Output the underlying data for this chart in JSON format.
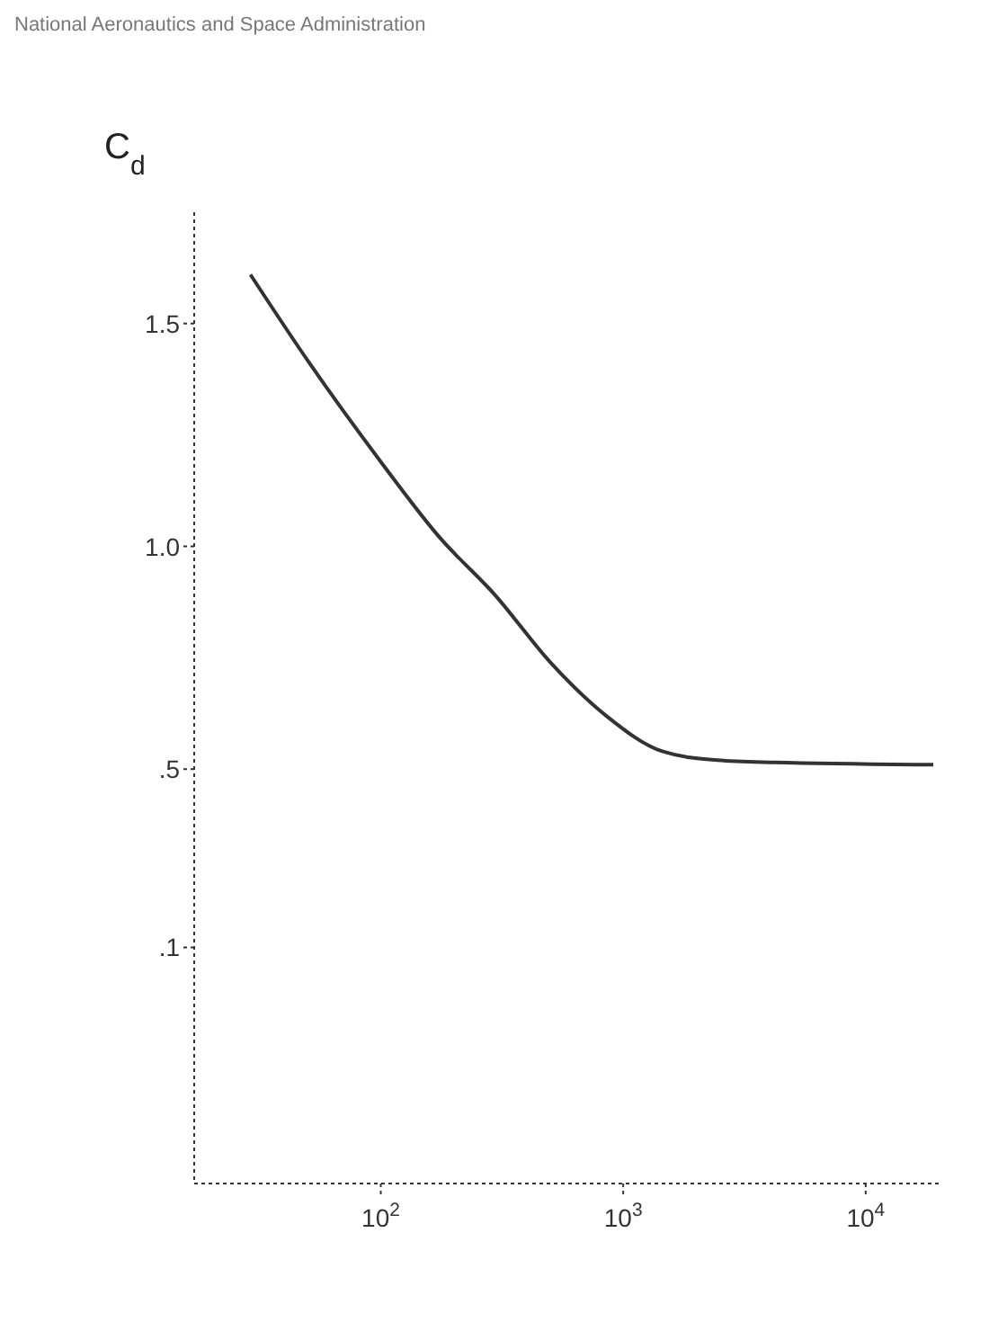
{
  "chart_data": {
    "type": "line",
    "ylabel": "C$_{d}$",
    "annotations": [
      "National Aeronautics and Space Administration"
    ],
    "log": "x",
    "xlim": [
      17,
      20000
    ],
    "ylim": [
      -0.43,
      1.75
    ],
    "xticks": [
      {
        "value": 100,
        "label": "10$^{2}$"
      },
      {
        "value": 1000,
        "label": "10$^{3}$"
      },
      {
        "value": 10000,
        "label": "10$^{4}$"
      }
    ],
    "yticks": [
      {
        "value": 0.1,
        "label": ".1"
      },
      {
        "value": 0.5,
        "label": ".5"
      },
      {
        "value": 1.0,
        "label": "1.0"
      },
      {
        "value": 1.5,
        "label": "1.5"
      }
    ],
    "grid": false,
    "marker": "none",
    "line_style": "solid",
    "series": [
      {
        "color": "#333333",
        "x": [
          29,
          51,
          100,
          175,
          297,
          500,
          850,
          1450,
          2450,
          4200,
          19000
        ],
        "values": [
          1.61,
          1.41,
          1.19,
          1.02,
          0.89,
          0.74,
          0.62,
          0.54,
          0.52,
          0.515,
          0.51
        ]
      }
    ]
  }
}
